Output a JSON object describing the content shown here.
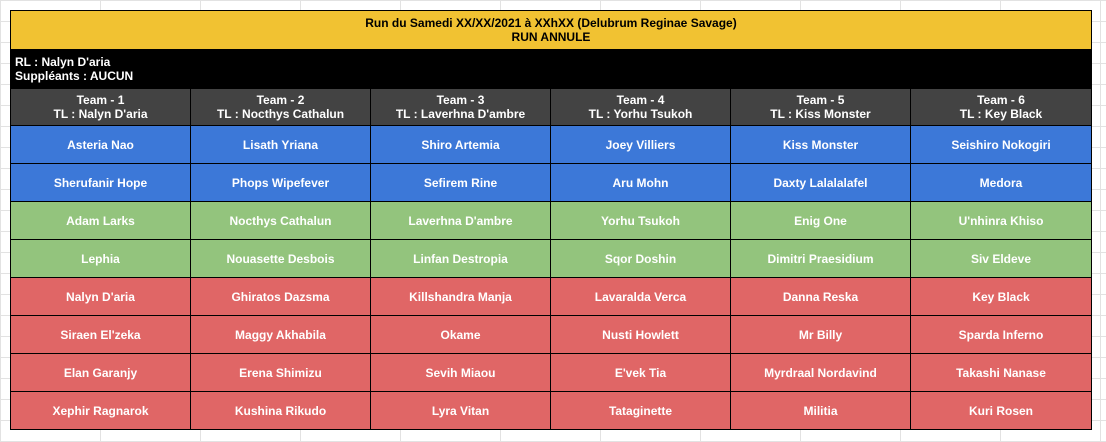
{
  "title": {
    "line1": "Run du Samedi XX/XX/2021 à XXhXX (Delubrum Reginae Savage)",
    "line2": "RUN ANNULE"
  },
  "info": {
    "rl": "RL : Nalyn D'aria",
    "subs": "Suppléants : AUCUN"
  },
  "teams": [
    {
      "name": "Team - 1",
      "tl": "TL : Nalyn D'aria"
    },
    {
      "name": "Team - 2",
      "tl": "TL : Nocthys Cathalun"
    },
    {
      "name": "Team - 3",
      "tl": "TL : Laverhna D'ambre"
    },
    {
      "name": "Team - 4",
      "tl": "TL : Yorhu Tsukoh"
    },
    {
      "name": "Team - 5",
      "tl": "TL : Kiss Monster"
    },
    {
      "name": "Team - 6",
      "tl": "TL : Key Black"
    }
  ],
  "colors": {
    "blue": "#3c78d8",
    "green": "#93c47d",
    "red": "#e06666",
    "title": "#f1c232",
    "header": "#434343"
  },
  "rows": [
    {
      "color": "blue",
      "players": [
        "Asteria Nao",
        "Lisath Yriana",
        "Shiro Artemia",
        "Joey Villiers",
        "Kiss Monster",
        "Seishiro Nokogiri"
      ]
    },
    {
      "color": "blue",
      "players": [
        "Sherufanir Hope",
        "Phops Wipefever",
        "Sefirem Rine",
        "Aru Mohn",
        "Daxty Lalalalafel",
        "Medora"
      ]
    },
    {
      "color": "green",
      "players": [
        "Adam Larks",
        "Nocthys Cathalun",
        "Laverhna D'ambre",
        "Yorhu Tsukoh",
        "Enig One",
        "U'nhinra Khiso"
      ]
    },
    {
      "color": "green",
      "players": [
        "Lephia",
        "Nouasette Desbois",
        "Linfan Destropia",
        "Sqor Doshin",
        "Dimitri Praesidium",
        "Siv Eldeve"
      ]
    },
    {
      "color": "red",
      "players": [
        "Nalyn D'aria",
        "Ghiratos Dazsma",
        "Killshandra Manja",
        "Lavaralda Verca",
        "Danna Reska",
        "Key Black"
      ]
    },
    {
      "color": "red",
      "players": [
        "Siraen El'zeka",
        "Maggy Akhabila",
        "Okame",
        "Nusti Howlett",
        "Mr Billy",
        "Sparda Inferno"
      ]
    },
    {
      "color": "red",
      "players": [
        "Elan Garanjy",
        "Erena Shimizu",
        "Sevih Miaou",
        "E'vek Tia",
        "Myrdraal Nordavind",
        "Takashi Nanase"
      ]
    },
    {
      "color": "red",
      "players": [
        "Xephir Ragnarok",
        "Kushina Rikudo",
        "Lyra Vitan",
        "Tataginette",
        "Militia",
        "Kuri Rosen"
      ]
    }
  ]
}
